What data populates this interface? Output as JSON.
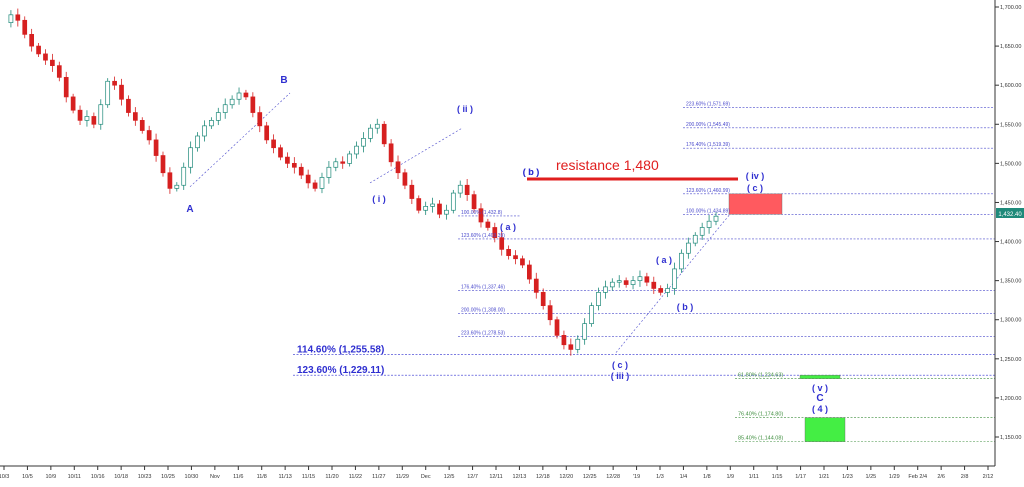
{
  "chart_data": {
    "type": "candlestick",
    "title": "",
    "ylim": [
      1130,
      1710
    ],
    "y_ticks": [
      "1,700.00",
      "1,650.00",
      "1,600.00",
      "1,550.00",
      "1,500.00",
      "1,450.00",
      "1,400.00",
      "1,350.00",
      "1,300.00",
      "1,250.00",
      "1,200.00",
      "1,150.00"
    ],
    "y_tick_values": [
      1700,
      1650,
      1600,
      1550,
      1500,
      1450,
      1400,
      1350,
      1300,
      1250,
      1200,
      1150
    ],
    "x_ticks": [
      "10/3",
      "10/5",
      "10/9",
      "10/11",
      "10/16",
      "10/18",
      "10/23",
      "10/25",
      "10/30",
      "Nov",
      "11/6",
      "11/8",
      "11/13",
      "11/15",
      "11/20",
      "11/22",
      "11/27",
      "11/29",
      "Dec",
      "12/5",
      "12/7",
      "12/11",
      "12/13",
      "12/18",
      "12/20",
      "12/25",
      "12/28",
      "'19",
      "1/3",
      "1/4",
      "1/8",
      "1/9",
      "1/11",
      "1/15",
      "1/17",
      "1/21",
      "1/23",
      "1/25",
      "1/29",
      "Feb 2/4",
      "2/6",
      "2/8",
      "2/12"
    ],
    "last_price": "1,432.40",
    "last_value": 1432.4,
    "price_path": [
      1680,
      1690,
      1683,
      1665,
      1650,
      1640,
      1632,
      1625,
      1610,
      1585,
      1568,
      1555,
      1560,
      1550,
      1575,
      1605,
      1600,
      1582,
      1565,
      1555,
      1542,
      1530,
      1510,
      1488,
      1468,
      1472,
      1495,
      1520,
      1535,
      1548,
      1555,
      1565,
      1575,
      1582,
      1590,
      1585,
      1565,
      1548,
      1530,
      1520,
      1508,
      1500,
      1495,
      1485,
      1475,
      1468,
      1482,
      1495,
      1502,
      1500,
      1512,
      1522,
      1532,
      1545,
      1550,
      1525,
      1502,
      1488,
      1472,
      1455,
      1440,
      1445,
      1448,
      1435,
      1440,
      1462,
      1472,
      1460,
      1442,
      1425,
      1418,
      1405,
      1390,
      1382,
      1378,
      1370,
      1352,
      1335,
      1318,
      1300,
      1280,
      1268,
      1262,
      1275,
      1295,
      1318,
      1335,
      1342,
      1348,
      1350,
      1345,
      1350,
      1355,
      1348,
      1340,
      1335,
      1340,
      1365,
      1385,
      1398,
      1408,
      1418,
      1426,
      1432.4
    ],
    "wave_labels": [
      "A",
      "B",
      "( i )",
      "( ii )",
      "( a )",
      "( b )",
      "( b )",
      "( a )",
      "( b )",
      "( c )",
      "( iii )",
      "( iv )",
      "( c )",
      "( v )",
      "C",
      "( 4 )"
    ],
    "annotation": "resistance 1,480",
    "resistance_value": 1480,
    "fib_levels": [
      {
        "label": "223.60% (1,571.69)",
        "value": 1571.69
      },
      {
        "label": "200.00% (1,545.49)",
        "value": 1545.49
      },
      {
        "label": "176.40% (1,519.39)",
        "value": 1519.39
      },
      {
        "label": "123.60% (1,460.99)",
        "value": 1460.99
      },
      {
        "label": "100.00% (1,434.89)",
        "value": 1434.89
      },
      {
        "label": "100.00% (1,432.8)",
        "value": 1432.8
      },
      {
        "label": "123.60% (1,403.39)",
        "value": 1403.39
      },
      {
        "label": "176.40% (1,337.46)",
        "value": 1337.46
      },
      {
        "label": "200.00% (1,308.00)",
        "value": 1308.0
      },
      {
        "label": "223.60% (1,278.53)",
        "value": 1278.53
      },
      {
        "label": "114.60% (1,255.58)",
        "value": 1255.58
      },
      {
        "label": "123.60% (1,229.11)",
        "value": 1229.11
      },
      {
        "label": "61.80% (1,224.63)",
        "value": 1224.63
      },
      {
        "label": "76.40% (1,174.80)",
        "value": 1174.8
      },
      {
        "label": "85.40% (1,144.08)",
        "value": 1144.08
      }
    ],
    "zones": [
      {
        "name": "resistance-zone",
        "from": 1434.89,
        "to": 1460.99,
        "color": "#ff5a5f"
      },
      {
        "name": "support-zone",
        "from": 1144.08,
        "to": 1174.8,
        "color": "#44ee44"
      },
      {
        "name": "support-zone-upper",
        "from": 1224.63,
        "to": 1229.11,
        "color": "#44ee44"
      }
    ],
    "colors": {
      "up": "#1f8a7a",
      "down": "#d62020",
      "wave_labels": "#2f2fd0",
      "fib_line": "#4a4acc",
      "fib_green": "#3f8f3f",
      "resistance": "#e01e1e",
      "last_price_tag": "#1f8a7a"
    }
  }
}
